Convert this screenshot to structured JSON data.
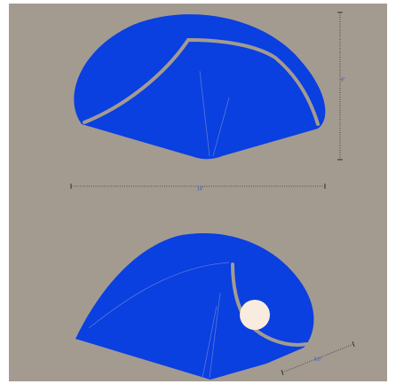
{
  "dimensions": {
    "height": "8\"",
    "width": "14\"",
    "depth": "5.5\""
  }
}
